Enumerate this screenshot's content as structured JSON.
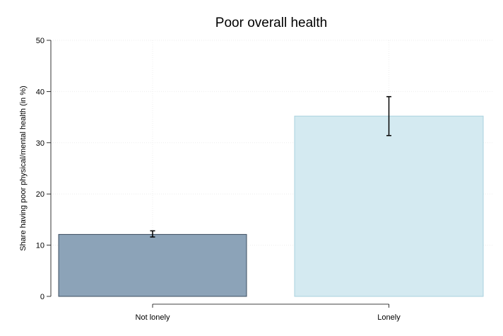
{
  "chart_data": {
    "type": "bar",
    "title": "Poor overall health",
    "xlabel": "",
    "ylabel": "Share having poor physical/mental health (in %)",
    "ylim": [
      0,
      50
    ],
    "yticks": [
      0,
      10,
      20,
      30,
      40,
      50
    ],
    "categories": [
      "Not lonely",
      "Lonely"
    ],
    "values": [
      12.1,
      35.2
    ],
    "error_low": [
      11.6,
      31.4
    ],
    "error_high": [
      12.8,
      39.0
    ],
    "colors": [
      "#8ca3b8",
      "#d4eaf1"
    ],
    "bar_edge_colors": [
      "#3b4c5f",
      "#a8d1de"
    ],
    "grid": true,
    "legend": "none"
  }
}
